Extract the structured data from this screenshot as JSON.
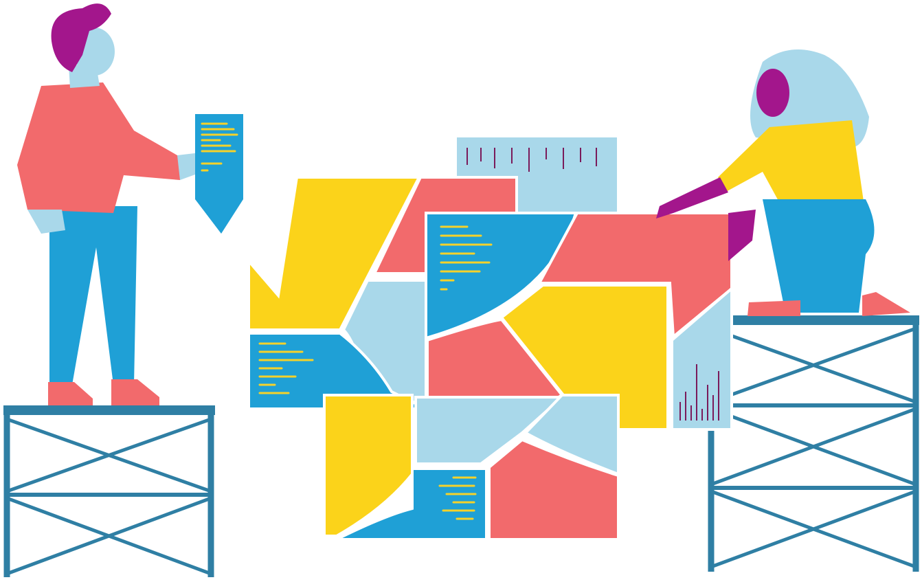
{
  "illustration": {
    "colors": {
      "yellow": "#FBD31A",
      "coral": "#F26A6C",
      "light_blue": "#A9D8EA",
      "blue": "#1FA0D6",
      "magenta": "#A3168C",
      "scaffold": "#2F7FA4",
      "code_line": "#F5D22A",
      "bar_mark": "#7A1A5A"
    }
  }
}
